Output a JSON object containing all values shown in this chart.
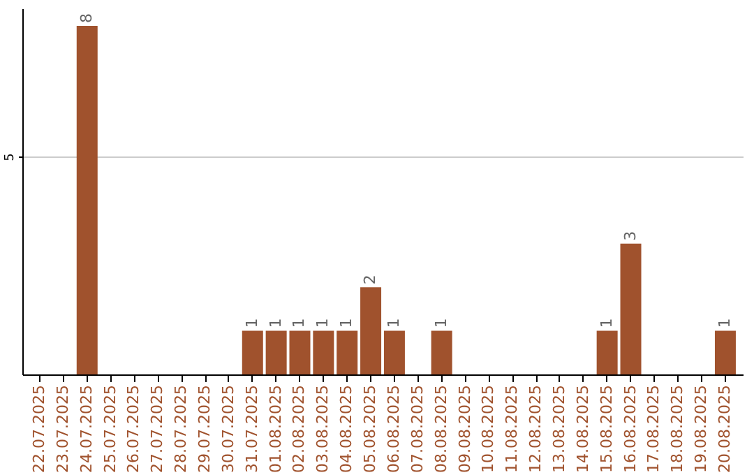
{
  "chart_data": {
    "type": "bar",
    "categories": [
      "22.07.2025",
      "23.07.2025",
      "24.07.2025",
      "25.07.2025",
      "26.07.2025",
      "27.07.2025",
      "28.07.2025",
      "29.07.2025",
      "30.07.2025",
      "31.07.2025",
      "01.08.2025",
      "02.08.2025",
      "03.08.2025",
      "04.08.2025",
      "05.08.2025",
      "06.08.2025",
      "07.08.2025",
      "08.08.2025",
      "09.08.2025",
      "10.08.2025",
      "11.08.2025",
      "12.08.2025",
      "13.08.2025",
      "14.08.2025",
      "15.08.2025",
      "16.08.2025",
      "17.08.2025",
      "18.08.2025",
      "19.08.2025",
      "20.08.2025"
    ],
    "values": [
      0,
      0,
      8,
      0,
      0,
      0,
      0,
      0,
      0,
      1,
      1,
      1,
      1,
      1,
      2,
      1,
      0,
      1,
      0,
      0,
      0,
      0,
      0,
      0,
      1,
      3,
      0,
      0,
      0,
      1
    ],
    "value_labels": [
      null,
      null,
      "8",
      null,
      null,
      null,
      null,
      null,
      null,
      "1",
      "1",
      "1",
      "1",
      "1",
      "2",
      "1",
      null,
      "1",
      null,
      null,
      null,
      null,
      null,
      null,
      "1",
      "3",
      null,
      null,
      null,
      "1"
    ],
    "color": "#a0522d",
    "ylim": [
      0,
      8.4
    ],
    "yticks": [
      5
    ],
    "grid": "y"
  }
}
